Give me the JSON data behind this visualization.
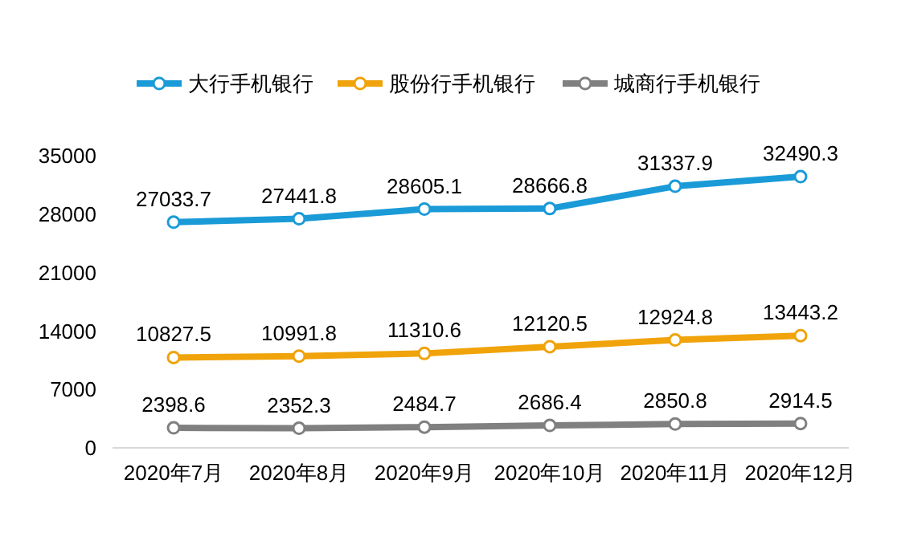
{
  "chart_data": {
    "type": "line",
    "categories": [
      "2020年7月",
      "2020年8月",
      "2020年9月",
      "2020年10月",
      "2020年11月",
      "2020年12月"
    ],
    "series": [
      {
        "name": "大行手机银行",
        "color": "#1a9bd7",
        "values": [
          27033.7,
          27441.8,
          28605.1,
          28666.8,
          31337.9,
          32490.3
        ]
      },
      {
        "name": "股份行手机银行",
        "color": "#f0a30a",
        "values": [
          10827.5,
          10991.8,
          11310.6,
          12120.5,
          12924.8,
          13443.2
        ]
      },
      {
        "name": "城商行手机银行",
        "color": "#808080",
        "values": [
          2398.6,
          2352.3,
          2484.7,
          2686.4,
          2850.8,
          2914.5
        ]
      }
    ],
    "ylim": [
      0,
      35000
    ],
    "yticks": [
      0,
      7000,
      14000,
      21000,
      28000,
      35000
    ],
    "data_labels": true,
    "legend": "top",
    "marker": "circle",
    "line_style": "solid",
    "grid": false
  }
}
